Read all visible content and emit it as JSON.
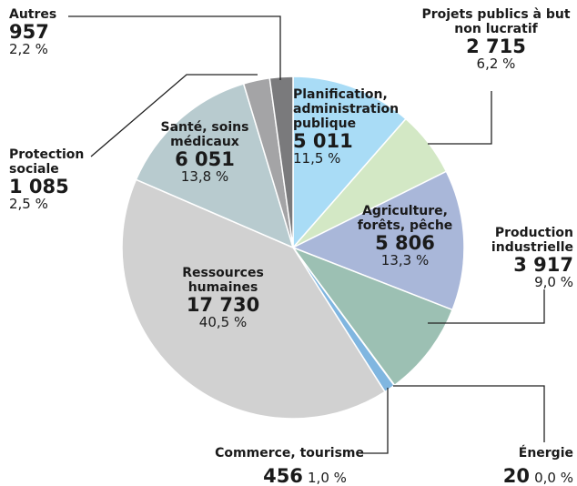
{
  "chart_data": {
    "type": "pie",
    "categories": [
      "Planification, administration publique",
      "Projets publics à but non lucratif",
      "Agriculture, forêts, pêche",
      "Production industrielle",
      "Énergie",
      "Commerce, tourisme",
      "Ressources humaines",
      "Santé, soins médicaux",
      "Protection sociale",
      "Autres"
    ],
    "values": [
      5011,
      2715,
      5806,
      3917,
      20,
      456,
      17730,
      6051,
      1085,
      957
    ],
    "value_labels": [
      "5 011",
      "2 715",
      "5 806",
      "3 917",
      "20",
      "456",
      "17 730",
      "6 051",
      "1 085",
      "957"
    ],
    "percent_labels": [
      "11,5 %",
      "6,2 %",
      "13,3 %",
      "9,0 %",
      "0,0 %",
      "1,0 %",
      "40,5 %",
      "13,8 %",
      "2,5 %",
      "2,2 %"
    ],
    "colors": [
      "#a9dcf6",
      "#d3e8c5",
      "#a9b7d9",
      "#9cc0b3",
      "#b9c9d9",
      "#80b6e0",
      "#d1d1d1",
      "#b8cbcf",
      "#a4a4a6",
      "#7a7a7c"
    ]
  }
}
